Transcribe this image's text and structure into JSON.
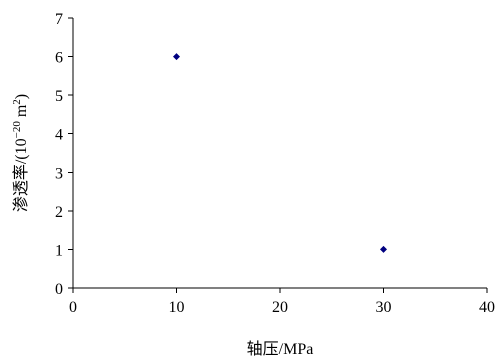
{
  "chart_data": {
    "type": "scatter",
    "xlabel": "轴压/MPa",
    "ylabel_prefix": "渗透率/(10",
    "ylabel_exp": "−20",
    "ylabel_mid": " m",
    "ylabel_exp2": "2",
    "ylabel_suffix": ")",
    "xlim": [
      0,
      40
    ],
    "ylim": [
      0,
      7
    ],
    "xticks": [
      0,
      10,
      20,
      30,
      40
    ],
    "yticks": [
      0,
      1,
      2,
      3,
      4,
      5,
      6,
      7
    ],
    "grid": false,
    "marker": "diamond",
    "marker_color": "#000080",
    "points": [
      {
        "x": 10,
        "y": 6
      },
      {
        "x": 30,
        "y": 1
      }
    ]
  }
}
